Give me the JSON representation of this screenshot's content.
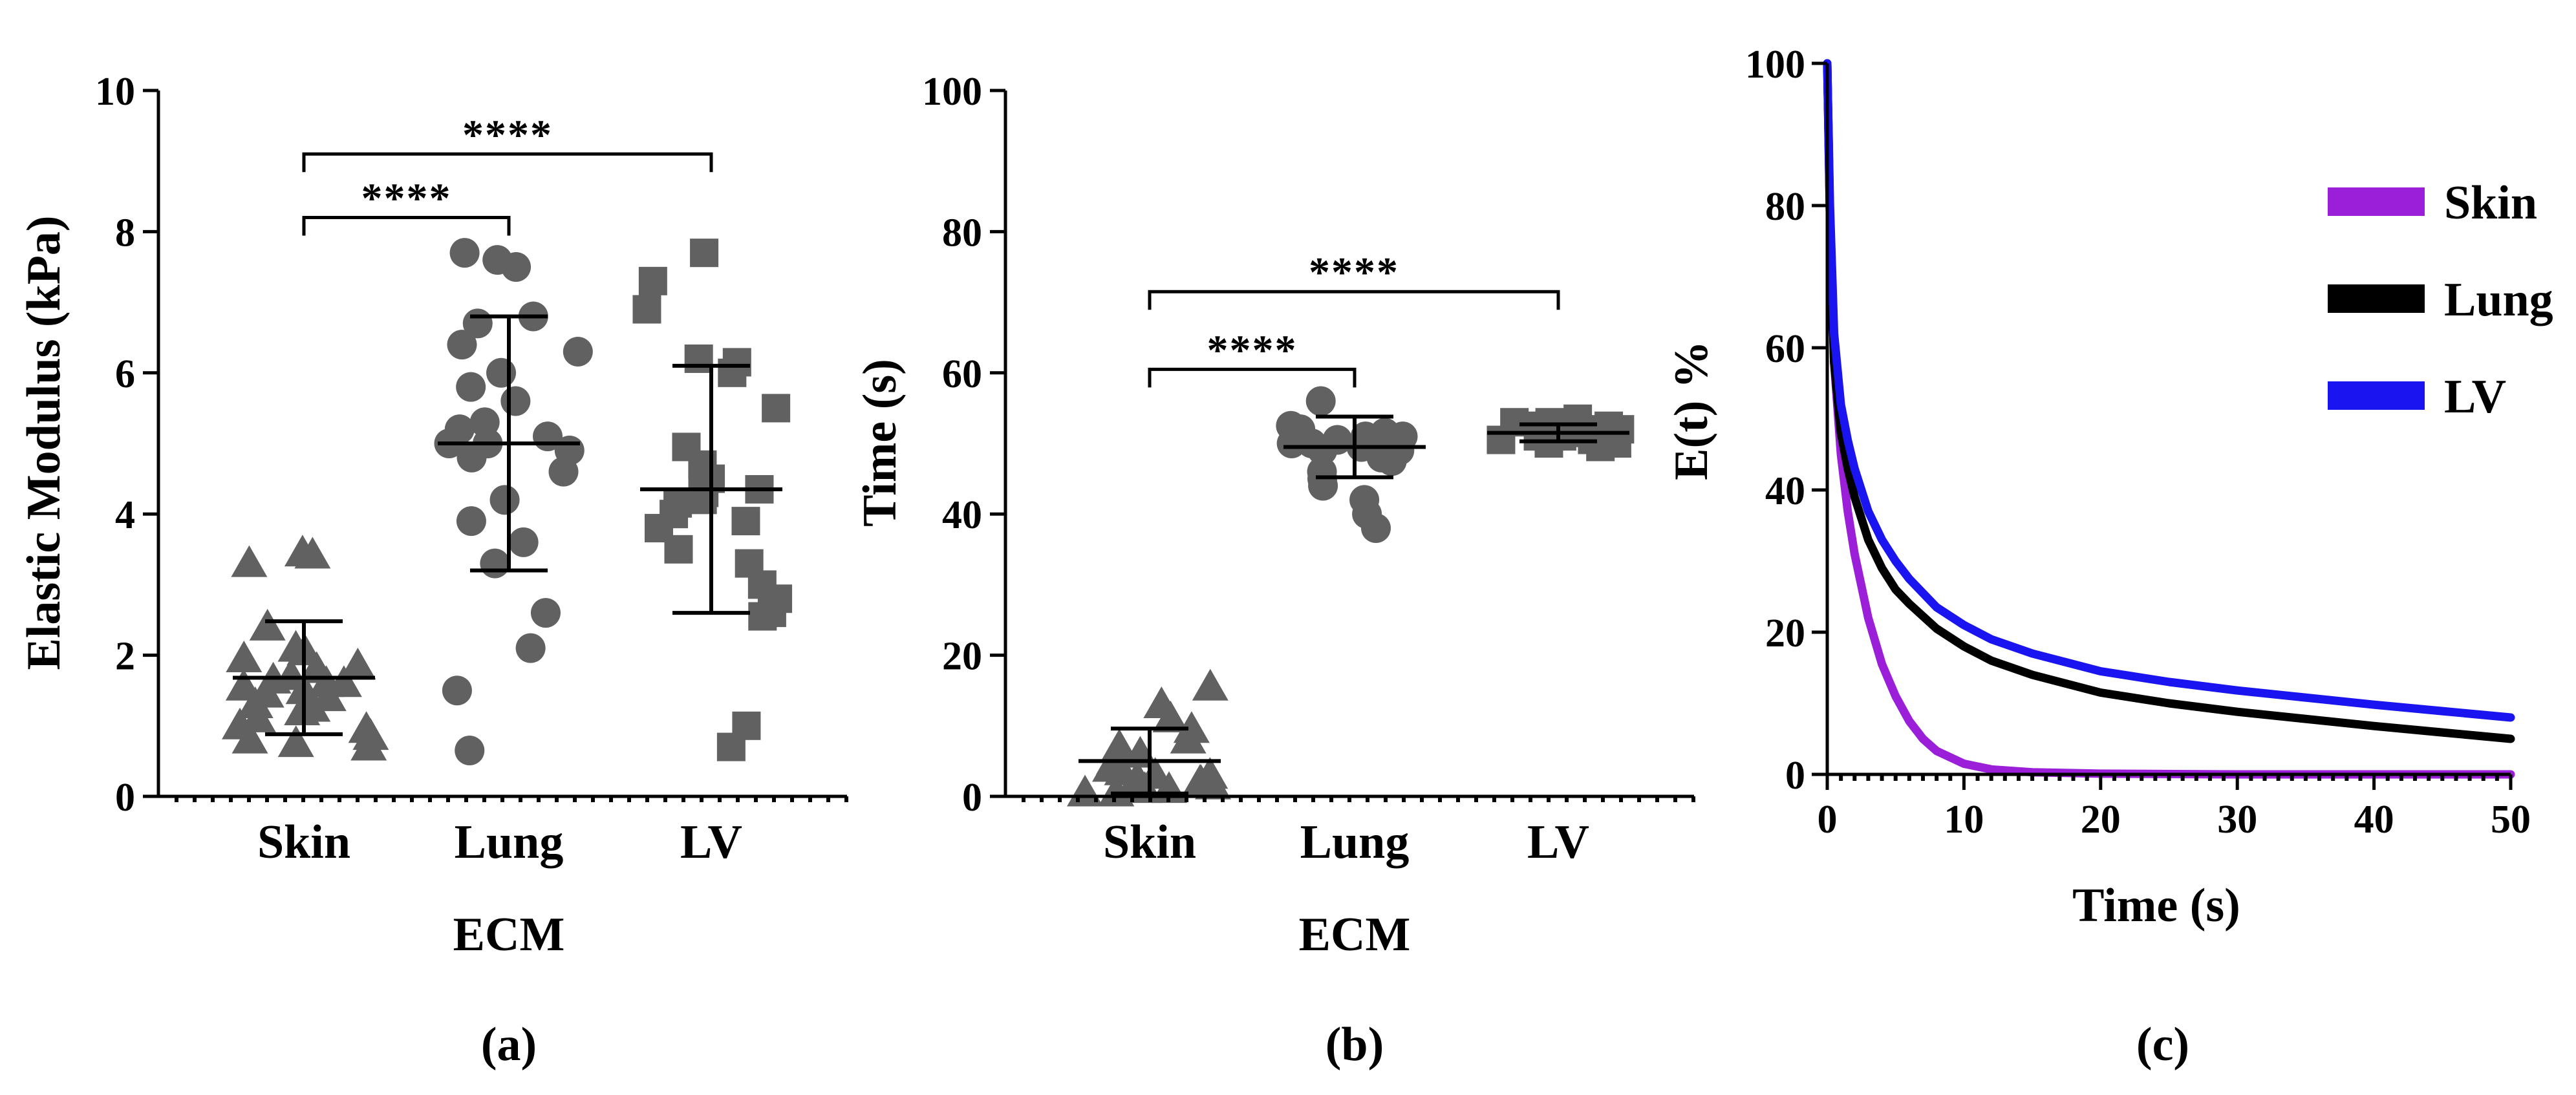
{
  "chart_data": [
    {
      "panel_label": "(a)",
      "type": "scatter",
      "xlabel": "ECM",
      "ylabel": "Elastic Modulus (kPa)",
      "ylim": [
        0,
        10
      ],
      "yticks": [
        0,
        2,
        4,
        6,
        8,
        10
      ],
      "yticklabels": [
        "0",
        "2",
        "4",
        "6",
        "8",
        "10"
      ],
      "categories": [
        "Skin",
        "Lung",
        "LV"
      ],
      "markers": [
        "triangle",
        "circle",
        "square"
      ],
      "color": "#616161",
      "series": [
        {
          "name": "Skin",
          "mean": 1.68,
          "sd": 0.8,
          "values": [
            3.45,
            3.42,
            3.3,
            2.4,
            2.1,
            2.05,
            1.95,
            1.85,
            1.8,
            1.7,
            1.65,
            1.6,
            1.6,
            1.55,
            1.5,
            1.45,
            1.4,
            1.3,
            1.25,
            1.2,
            1.1,
            1.0,
            0.95,
            0.85,
            0.8,
            0.75,
            0.7
          ]
        },
        {
          "name": "Lung",
          "mean": 5.0,
          "sd": 1.8,
          "values": [
            7.7,
            7.6,
            7.5,
            6.8,
            6.7,
            6.4,
            6.3,
            6.0,
            5.8,
            5.6,
            5.3,
            5.2,
            5.1,
            5.0,
            5.0,
            5.0,
            4.9,
            4.8,
            4.6,
            4.2,
            3.9,
            3.6,
            3.3,
            2.6,
            2.1,
            1.5,
            0.65
          ]
        },
        {
          "name": "LV",
          "mean": 4.35,
          "sd": 1.75,
          "values": [
            7.7,
            7.3,
            6.9,
            6.2,
            6.15,
            6.0,
            5.5,
            4.95,
            4.7,
            4.5,
            4.4,
            4.35,
            4.3,
            4.2,
            4.15,
            4.0,
            3.9,
            3.8,
            3.5,
            3.3,
            3.0,
            2.8,
            2.6,
            2.55,
            1.0,
            0.7
          ]
        }
      ],
      "annotations": [
        {
          "from": "Skin",
          "to": "Lung",
          "text": "****",
          "y": 8.2
        },
        {
          "from": "Skin",
          "to": "LV",
          "text": "****",
          "y": 9.1
        }
      ]
    },
    {
      "panel_label": "(b)",
      "type": "scatter",
      "xlabel": "ECM",
      "ylabel": "Time (s)",
      "ylim": [
        0,
        100
      ],
      "yticks": [
        0,
        20,
        40,
        60,
        80,
        100
      ],
      "yticklabels": [
        "0",
        "20",
        "40",
        "60",
        "80",
        "100"
      ],
      "categories": [
        "Skin",
        "Lung",
        "LV"
      ],
      "markers": [
        "triangle",
        "circle",
        "square"
      ],
      "color": "#616161",
      "series": [
        {
          "name": "Skin",
          "mean": 5.0,
          "sd": 4.6,
          "values": [
            15.5,
            13.0,
            11.0,
            9.5,
            8.0,
            7.0,
            6.0,
            5.0,
            4.5,
            4.0,
            3.5,
            3.0,
            3.0,
            2.5,
            2.0,
            2.0,
            1.5,
            1.5,
            1.0,
            1.0,
            0.5,
            0.5
          ]
        },
        {
          "name": "Lung",
          "mean": 49.5,
          "sd": 4.3,
          "values": [
            56.0,
            52.5,
            52.0,
            51.5,
            51.0,
            51.0,
            50.5,
            50.0,
            50.0,
            49.5,
            49.0,
            49.0,
            48.0,
            47.5,
            46.0,
            45.0,
            44.0,
            42.0,
            40.0,
            38.0
          ]
        },
        {
          "name": "LV",
          "mean": 51.5,
          "sd": 1.2,
          "values": [
            53.5,
            53.0,
            53.0,
            52.5,
            52.5,
            52.0,
            52.0,
            51.5,
            51.5,
            51.0,
            51.0,
            50.5,
            50.5,
            50.0,
            50.0,
            49.5
          ]
        }
      ],
      "annotations": [
        {
          "from": "Skin",
          "to": "Lung",
          "text": "****",
          "y": 60.5
        },
        {
          "from": "Skin",
          "to": "LV",
          "text": "****",
          "y": 71.5
        }
      ]
    },
    {
      "panel_label": "(c)",
      "type": "line",
      "xlabel": "Time (s)",
      "ylabel": "E(t) %",
      "xlim": [
        0,
        50
      ],
      "ylim": [
        0,
        100
      ],
      "xticks": [
        0,
        10,
        20,
        30,
        40,
        50
      ],
      "xticklabels": [
        "0",
        "10",
        "20",
        "30",
        "40",
        "50"
      ],
      "yticks": [
        0,
        20,
        40,
        60,
        80,
        100
      ],
      "yticklabels": [
        "0",
        "20",
        "40",
        "60",
        "80",
        "100"
      ],
      "legend_position": "top-right",
      "series": [
        {
          "name": "Skin",
          "color": "#9b1fd8",
          "x": [
            0,
            0.2,
            0.5,
            1,
            1.5,
            2,
            3,
            4,
            5,
            6,
            7,
            8,
            10,
            12,
            15,
            20,
            30,
            40,
            50
          ],
          "y": [
            100,
            78,
            58,
            45,
            37,
            31,
            22,
            15.5,
            11,
            7.5,
            5,
            3.3,
            1.5,
            0.7,
            0.3,
            0.1,
            0,
            0,
            0
          ]
        },
        {
          "name": "Lung",
          "color": "#000000",
          "x": [
            0,
            0.2,
            0.5,
            1,
            1.5,
            2,
            3,
            4,
            5,
            6,
            8,
            10,
            12,
            15,
            20,
            25,
            30,
            35,
            40,
            45,
            50
          ],
          "y": [
            100,
            78,
            58,
            48,
            43,
            39,
            33,
            29,
            26,
            24,
            20.5,
            18,
            16,
            14,
            11.5,
            10,
            8.8,
            7.8,
            6.8,
            5.9,
            5
          ]
        },
        {
          "name": "LV",
          "color": "#1a14f0",
          "x": [
            0,
            0.2,
            0.5,
            1,
            1.5,
            2,
            3,
            4,
            5,
            6,
            8,
            10,
            12,
            15,
            20,
            25,
            30,
            35,
            40,
            45,
            50
          ],
          "y": [
            100,
            80,
            62,
            52,
            47,
            43,
            37,
            33,
            30,
            27.5,
            23.5,
            21,
            19,
            17,
            14.5,
            13,
            11.8,
            10.8,
            9.8,
            8.9,
            8
          ]
        }
      ]
    }
  ]
}
